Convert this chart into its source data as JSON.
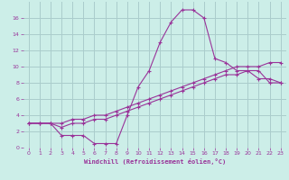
{
  "xlabel": "Windchill (Refroidissement éolien,°C)",
  "bg_color": "#cceee8",
  "grid_color": "#aacccc",
  "line_color": "#993399",
  "xlim": [
    -0.5,
    23.5
  ],
  "ylim": [
    0,
    18
  ],
  "xticks": [
    0,
    1,
    2,
    3,
    4,
    5,
    6,
    7,
    8,
    9,
    10,
    11,
    12,
    13,
    14,
    15,
    16,
    17,
    18,
    19,
    20,
    21,
    22,
    23
  ],
  "yticks": [
    0,
    2,
    4,
    6,
    8,
    10,
    12,
    14,
    16
  ],
  "line1_x": [
    0,
    1,
    2,
    3,
    4,
    5,
    6,
    7,
    8,
    9,
    10,
    11,
    12,
    13,
    14,
    15,
    16,
    17,
    18,
    19,
    20,
    21,
    22,
    23
  ],
  "line1_y": [
    3,
    3,
    3,
    1.5,
    1.5,
    1.5,
    0.5,
    0.5,
    0.5,
    4,
    7.5,
    9.5,
    13,
    15.5,
    17,
    17,
    16,
    11,
    10.5,
    9.5,
    9.5,
    8.5,
    8.5,
    8
  ],
  "line2_x": [
    0,
    1,
    2,
    3,
    4,
    5,
    6,
    7,
    8,
    9,
    10,
    11,
    12,
    13,
    14,
    15,
    16,
    17,
    18,
    19,
    20,
    21,
    22,
    23
  ],
  "line2_y": [
    3,
    3,
    3,
    3,
    3.5,
    3.5,
    4,
    4,
    4.5,
    5,
    5.5,
    6,
    6.5,
    7,
    7.5,
    8,
    8.5,
    9,
    9.5,
    10,
    10,
    10,
    10.5,
    10.5
  ],
  "line3_x": [
    0,
    1,
    2,
    3,
    4,
    5,
    6,
    7,
    8,
    9,
    10,
    11,
    12,
    13,
    14,
    15,
    16,
    17,
    18,
    19,
    20,
    21,
    22,
    23
  ],
  "line3_y": [
    3,
    3,
    3,
    2.5,
    3,
    3,
    3.5,
    3.5,
    4,
    4.5,
    5,
    5.5,
    6,
    6.5,
    7,
    7.5,
    8,
    8.5,
    9,
    9,
    9.5,
    9.5,
    8,
    8
  ]
}
